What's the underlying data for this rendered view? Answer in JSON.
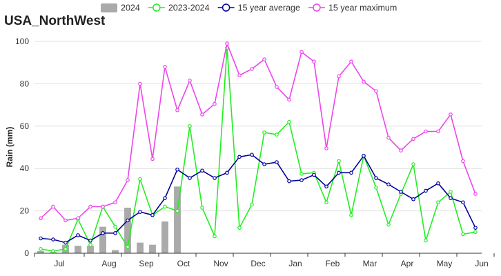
{
  "chart_data": {
    "type": "line",
    "title": "USA_NorthWest",
    "ylabel": "Rain (mm)",
    "xlabel": "",
    "ylim": [
      0,
      100
    ],
    "yticks": [
      0,
      20,
      40,
      60,
      80,
      100
    ],
    "grid": true,
    "legend_position": "top",
    "month_labels": [
      {
        "label": "Jul",
        "x": 2
      },
      {
        "label": "Aug",
        "x": 6
      },
      {
        "label": "Sep",
        "x": 9
      },
      {
        "label": "Oct",
        "x": 12
      },
      {
        "label": "Nov",
        "x": 15
      },
      {
        "label": "Dec",
        "x": 18
      },
      {
        "label": "Jan",
        "x": 21
      },
      {
        "label": "Feb",
        "x": 24
      },
      {
        "label": "Mar",
        "x": 27
      },
      {
        "label": "Apr",
        "x": 30
      },
      {
        "label": "May",
        "x": 33
      },
      {
        "label": "Jun",
        "x": 36
      }
    ],
    "month_boundaries": [
      0,
      4,
      7,
      10,
      13,
      16,
      19,
      22,
      25,
      28,
      31,
      34,
      37
    ],
    "series": [
      {
        "name": "2024",
        "type": "bar",
        "color": "#aaaaaa",
        "values": [
          1,
          0.5,
          4,
          3.5,
          3.5,
          12.5,
          1.5,
          21.5,
          5,
          4,
          15,
          31.5
        ]
      },
      {
        "name": "2023-2024",
        "type": "line",
        "color": "#22ee22",
        "values": [
          2,
          1,
          2,
          16,
          4,
          22,
          12.5,
          3,
          35,
          18,
          22,
          20,
          60,
          21.5,
          8,
          97,
          12,
          23,
          57,
          56,
          62,
          37.5,
          38,
          24,
          43.5,
          18,
          46,
          31,
          13.5,
          28,
          42,
          6,
          24,
          29,
          9,
          10
        ]
      },
      {
        "name": "15 year average",
        "type": "line",
        "color": "#000099",
        "values": [
          7,
          6.5,
          5,
          8.5,
          6,
          9.5,
          9.5,
          15.5,
          19.5,
          18,
          26,
          39.5,
          35.5,
          39,
          35.5,
          38,
          45.5,
          46.5,
          42,
          43,
          34,
          34.5,
          37,
          31.5,
          38,
          38,
          46,
          35.5,
          32.5,
          29,
          25.5,
          29.5,
          33,
          26,
          24,
          12
        ]
      },
      {
        "name": "15 year maximum",
        "type": "line",
        "color": "#ee44ee",
        "values": [
          16.5,
          22,
          15.5,
          16.5,
          22,
          22,
          24,
          34.5,
          80,
          44.5,
          88,
          67.5,
          81.5,
          65.5,
          70.5,
          99,
          84,
          87,
          91.5,
          78.5,
          72.5,
          95,
          90.5,
          49.5,
          83.5,
          90.5,
          81,
          76.5,
          54.5,
          48.5,
          54,
          57.5,
          57.5,
          65.5,
          43.5,
          28
        ]
      }
    ]
  }
}
